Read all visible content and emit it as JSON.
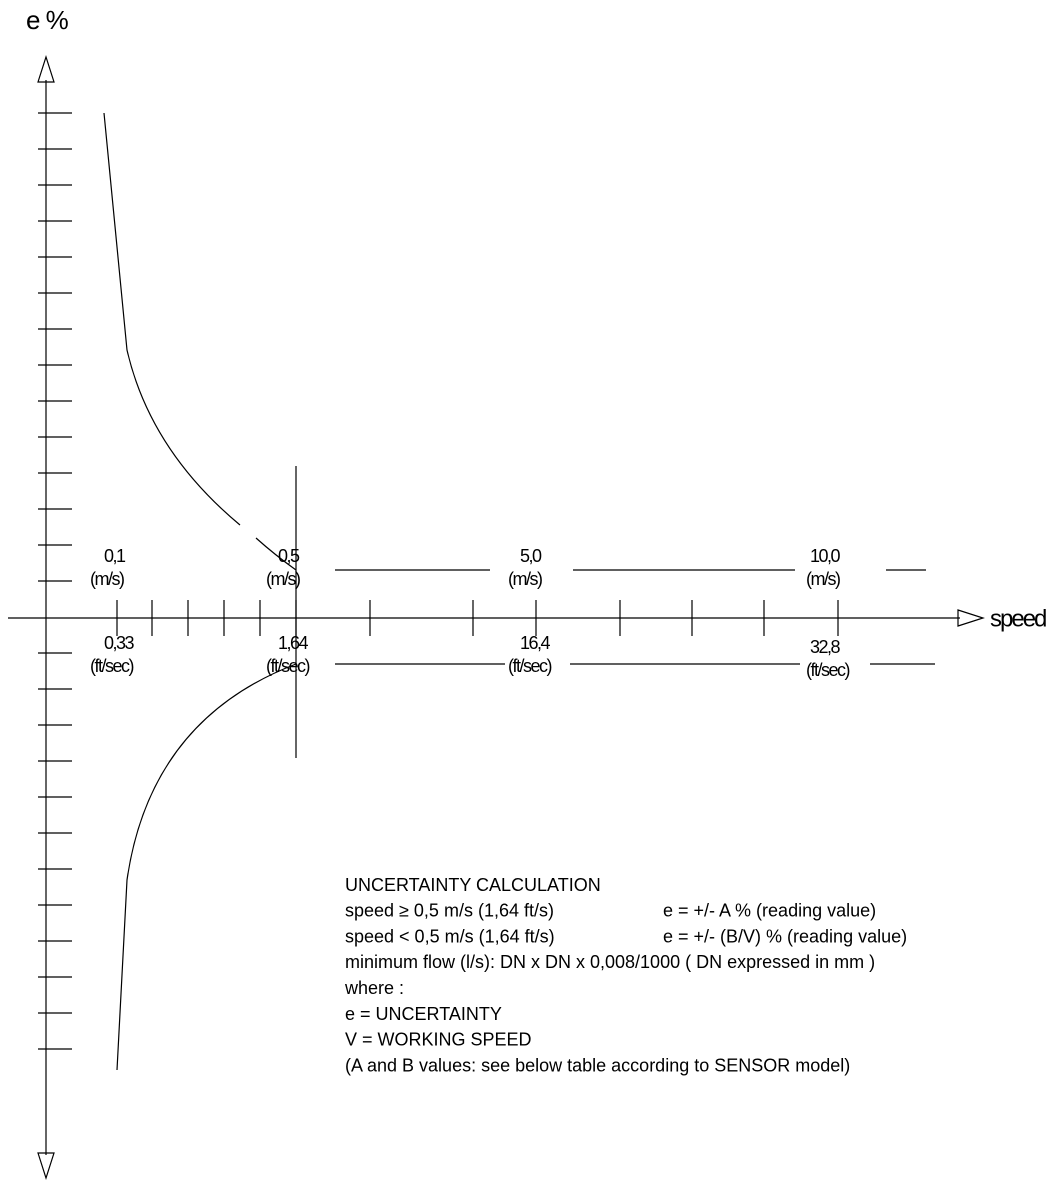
{
  "axes": {
    "y_label": "e %",
    "x_label": "speed"
  },
  "speed_marks": [
    {
      "ms": "0,1",
      "ms_unit": "(m/s)",
      "fts": "0,33",
      "fts_unit": "(ft/sec)"
    },
    {
      "ms": "0,5",
      "ms_unit": "(m/s)",
      "fts": "1,64",
      "fts_unit": "(ft/sec)"
    },
    {
      "ms": "5,0",
      "ms_unit": "(m/s)",
      "fts": "16,4",
      "fts_unit": "(ft/sec)"
    },
    {
      "ms": "10,0",
      "ms_unit": "(m/s)",
      "fts": "32,8",
      "fts_unit": "(ft/sec)"
    }
  ],
  "notes": {
    "title": "UNCERTAINTY  CALCULATION",
    "rules": [
      {
        "condition": "speed ≥ 0,5 m/s (1,64 ft/s)",
        "formula": "e = +/- A % (reading value)"
      },
      {
        "condition": "speed < 0,5 m/s (1,64 ft/s)",
        "formula": "e = +/- (B/V) % (reading value)"
      }
    ],
    "lines": [
      "minimum flow (l/s): DN x DN x 0,008/1000 ( DN expressed in mm )",
      "where :",
      "e = UNCERTAINTY",
      "V = WORKING SPEED",
      "(A and B values: see below table according to SENSOR model)"
    ]
  }
}
